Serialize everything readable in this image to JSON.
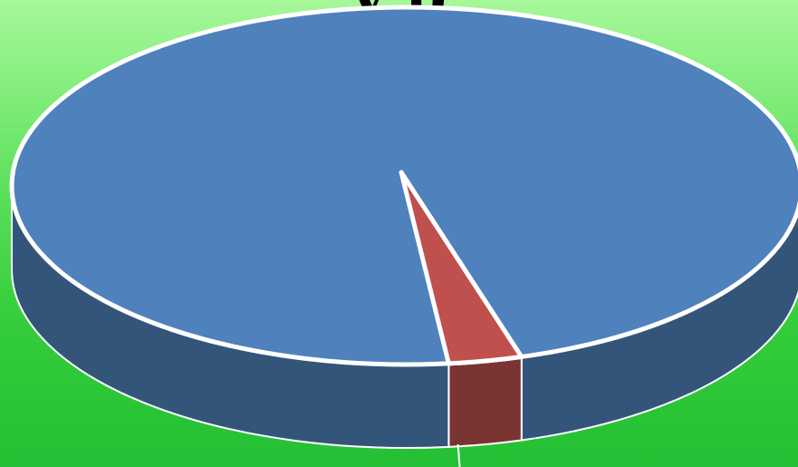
{
  "colors": {
    "background_top": "#a6f79a",
    "background_bottom": "#25bf35",
    "slice_1_top": "#4f81bd",
    "slice_1_side": "#34557a",
    "slice_2_top": "#c0504d",
    "slice_2_side": "#7a3432",
    "outline": "#ffffff"
  },
  "chart_data": {
    "type": "pie",
    "style": "3d",
    "title_fragment": "y p",
    "categories": [
      "",
      ""
    ],
    "values": [
      97,
      3
    ],
    "legend": "none"
  }
}
